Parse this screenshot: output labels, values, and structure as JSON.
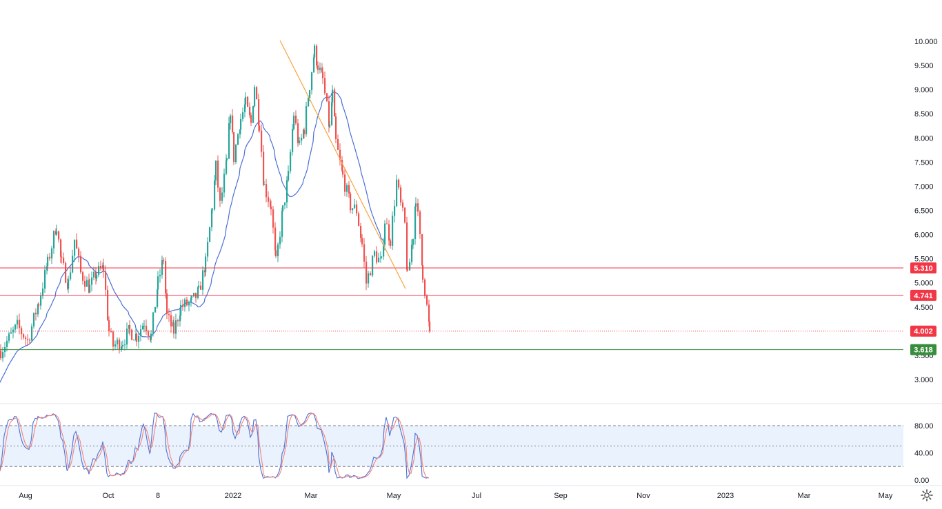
{
  "chart_data": [
    {
      "type": "candlestick",
      "symbol": "",
      "x_axis_labels": [
        "Aug",
        "Oct",
        "8",
        "2022",
        "Mar",
        "May",
        "Jul",
        "Sep",
        "Nov",
        "2023",
        "Mar",
        "May"
      ],
      "y_axis_ticks": [
        "10.000",
        "9.500",
        "9.000",
        "8.500",
        "8.000",
        "7.500",
        "7.000",
        "6.500",
        "6.000",
        "5.500",
        "5.000",
        "4.500",
        "3.500",
        "3.000"
      ],
      "ylim": [
        2.8,
        10.2
      ],
      "price_levels": [
        {
          "label": "5.310",
          "value": 5.31,
          "color": "#f23645",
          "style": "solid"
        },
        {
          "label": "4.741",
          "value": 4.741,
          "color": "#f23645",
          "style": "solid"
        },
        {
          "label": "4.002",
          "value": 4.002,
          "color": "#f23645",
          "style": "dotted",
          "note": "last price"
        },
        {
          "label": "3.618",
          "value": 3.618,
          "color": "#388e3c",
          "style": "solid"
        }
      ],
      "trendline": {
        "from": {
          "x": "2022-08-22",
          "y": 10.02
        },
        "to": {
          "x": "2023-02-20",
          "y": 4.88
        },
        "color": "#f7a33b"
      },
      "moving_average_color": "#4a6fd6",
      "up_color": "#26a69a",
      "down_color": "#ef5350",
      "anchors": [
        [
          "2021-07-12",
          3.6
        ],
        [
          "2021-08-05",
          4.1
        ],
        [
          "2021-08-20",
          3.8
        ],
        [
          "2021-09-05",
          4.6
        ],
        [
          "2021-09-18",
          5.4
        ],
        [
          "2021-10-01",
          6.2
        ],
        [
          "2021-10-08",
          5.4
        ],
        [
          "2021-10-18",
          5.0
        ],
        [
          "2021-10-27",
          5.9
        ],
        [
          "2021-11-05",
          5.2
        ],
        [
          "2021-11-18",
          4.9
        ],
        [
          "2021-11-28",
          5.2
        ],
        [
          "2021-12-08",
          5.3
        ],
        [
          "2021-12-16",
          4.0
        ],
        [
          "2021-12-22",
          3.7
        ],
        [
          "2022-01-05",
          3.8
        ],
        [
          "2022-01-15",
          4.0
        ],
        [
          "2022-01-25",
          3.9
        ],
        [
          "2022-02-05",
          4.2
        ],
        [
          "2022-02-15",
          3.9
        ],
        [
          "2022-02-25",
          5.0
        ],
        [
          "2022-03-05",
          5.5
        ],
        [
          "2022-03-10",
          4.3
        ],
        [
          "2022-03-20",
          4.0
        ],
        [
          "2022-03-30",
          4.5
        ],
        [
          "2022-04-15",
          4.6
        ],
        [
          "2022-04-25",
          4.8
        ],
        [
          "2022-05-05",
          5.4
        ],
        [
          "2022-05-15",
          6.6
        ],
        [
          "2022-05-20",
          7.4
        ],
        [
          "2022-05-26",
          6.6
        ],
        [
          "2022-06-05",
          7.5
        ],
        [
          "2022-06-10",
          8.6
        ],
        [
          "2022-06-15",
          7.6
        ],
        [
          "2022-06-25",
          8.4
        ],
        [
          "2022-07-02",
          8.7
        ],
        [
          "2022-07-10",
          8.3
        ],
        [
          "2022-07-15",
          9.1
        ],
        [
          "2022-07-22",
          8.3
        ],
        [
          "2022-07-29",
          7.0
        ],
        [
          "2022-08-08",
          6.6
        ],
        [
          "2022-08-15",
          5.4
        ],
        [
          "2022-08-25",
          6.5
        ],
        [
          "2022-09-02",
          7.2
        ],
        [
          "2022-09-10",
          8.5
        ],
        [
          "2022-09-18",
          7.8
        ],
        [
          "2022-09-25",
          8.2
        ],
        [
          "2022-10-03",
          9.1
        ],
        [
          "2022-10-10",
          9.8
        ],
        [
          "2022-10-15",
          9.5
        ],
        [
          "2022-10-22",
          9.2
        ],
        [
          "2022-11-01",
          8.2
        ],
        [
          "2022-11-05",
          8.9
        ],
        [
          "2022-11-10",
          7.9
        ],
        [
          "2022-11-20",
          7.2
        ],
        [
          "2022-12-01",
          6.6
        ],
        [
          "2022-12-10",
          6.5
        ],
        [
          "2022-12-18",
          5.8
        ],
        [
          "2022-12-24",
          5.0
        ],
        [
          "2023-01-05",
          5.6
        ],
        [
          "2023-01-15",
          5.4
        ],
        [
          "2023-01-20",
          6.3
        ],
        [
          "2023-01-28",
          5.9
        ],
        [
          "2023-02-06",
          7.1
        ],
        [
          "2023-02-12",
          6.6
        ],
        [
          "2023-02-18",
          6.2
        ],
        [
          "2023-02-22",
          5.1
        ],
        [
          "2023-03-02",
          6.0
        ],
        [
          "2023-03-06",
          6.8
        ],
        [
          "2023-03-12",
          5.9
        ],
        [
          "2023-03-16",
          5.2
        ],
        [
          "2023-03-22",
          4.5
        ],
        [
          "2023-03-26",
          4.0
        ]
      ],
      "indicator": {
        "type": "stochastic",
        "ticks": [
          "80.00",
          "40.00",
          "0.00"
        ],
        "band": [
          20,
          80
        ],
        "midline": 50,
        "line_colors": [
          "#4a6fd6",
          "#f4827a"
        ]
      }
    }
  ]
}
